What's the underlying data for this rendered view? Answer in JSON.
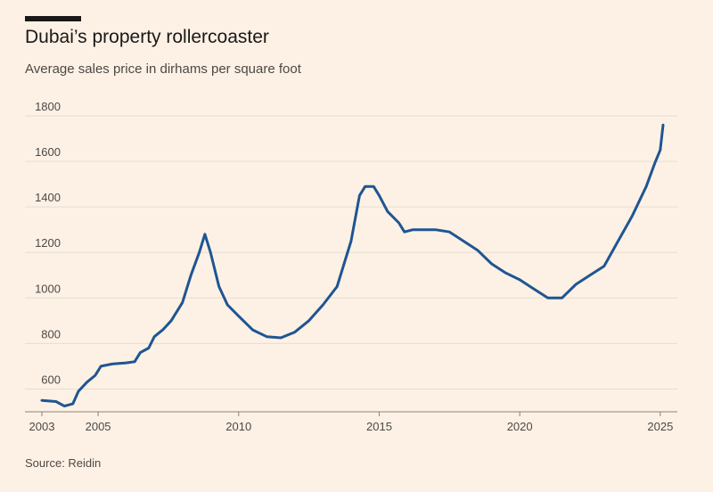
{
  "chart_data": {
    "type": "line",
    "title": "Dubai’s property rollercoaster",
    "subtitle": "Average sales price in dirhams per square foot",
    "source": "Source: Reidin",
    "x": [
      2003.0,
      2003.5,
      2003.8,
      2004.1,
      2004.3,
      2004.6,
      2004.9,
      2005.1,
      2005.5,
      2006.0,
      2006.3,
      2006.5,
      2006.8,
      2007.0,
      2007.3,
      2007.6,
      2008.0,
      2008.3,
      2008.6,
      2008.8,
      2009.0,
      2009.3,
      2009.6,
      2010.0,
      2010.5,
      2011.0,
      2011.5,
      2012.0,
      2012.5,
      2013.0,
      2013.5,
      2014.0,
      2014.3,
      2014.5,
      2014.8,
      2015.0,
      2015.3,
      2015.7,
      2015.9,
      2016.2,
      2016.5,
      2017.0,
      2017.5,
      2018.0,
      2018.5,
      2019.0,
      2019.5,
      2020.0,
      2020.5,
      2021.0,
      2021.5,
      2022.0,
      2022.5,
      2023.0,
      2023.5,
      2024.0,
      2024.5,
      2024.8,
      2025.0,
      2025.1
    ],
    "series": [
      {
        "name": "Average sales price",
        "color": "#1f5592",
        "values": [
          550,
          545,
          525,
          535,
          590,
          630,
          660,
          700,
          710,
          715,
          720,
          760,
          780,
          830,
          860,
          900,
          980,
          1100,
          1200,
          1280,
          1200,
          1050,
          970,
          920,
          860,
          830,
          825,
          850,
          900,
          970,
          1050,
          1250,
          1450,
          1490,
          1490,
          1450,
          1380,
          1330,
          1290,
          1300,
          1300,
          1300,
          1290,
          1250,
          1210,
          1150,
          1110,
          1080,
          1040,
          1000,
          1000,
          1060,
          1100,
          1140,
          1250,
          1360,
          1490,
          1590,
          1650,
          1760
        ]
      }
    ],
    "xlim": [
      2003,
      2025.1
    ],
    "xticks": [
      2003,
      2005,
      2010,
      2015,
      2020,
      2025
    ],
    "ylim": [
      500,
      1800
    ],
    "yticks": [
      600,
      800,
      1000,
      1200,
      1400,
      1600,
      1800
    ],
    "grid": true
  }
}
